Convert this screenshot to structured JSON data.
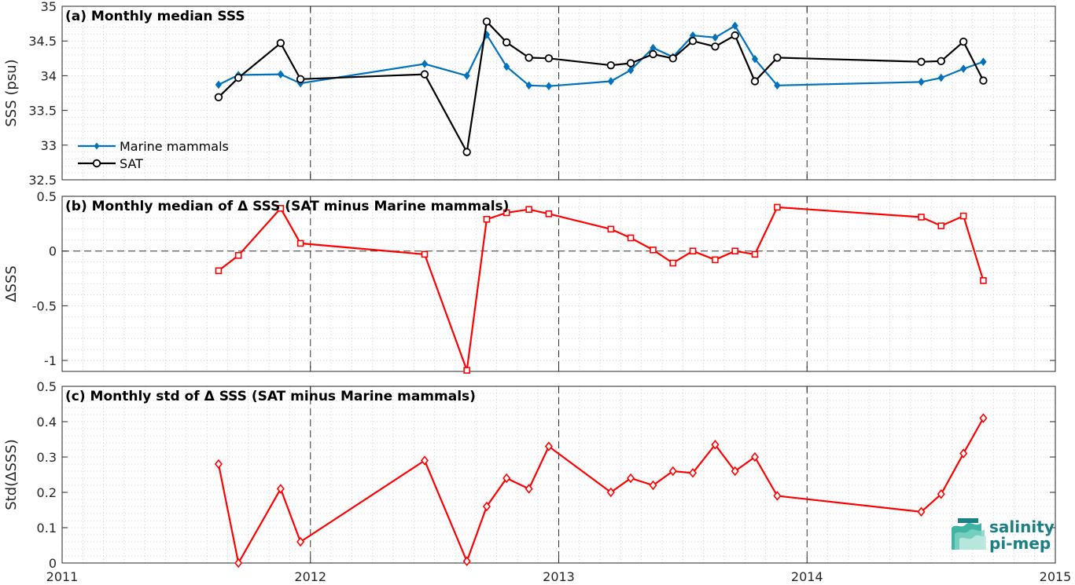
{
  "colors": {
    "marine_mammals": "#0072BD",
    "sat": "#000000",
    "delta": "#FF0000",
    "logo": "#1b7f86"
  },
  "logo": {
    "line1": "salinity",
    "line2": "pi-mep"
  },
  "x_axis": {
    "xlim": [
      2011,
      2015
    ],
    "tick_labels": [
      "2011",
      "2012",
      "2013",
      "2014",
      "2015"
    ]
  },
  "chart_data": [
    {
      "type": "line",
      "title": "(a) Monthly median SSS",
      "xlabel": "",
      "ylabel": "SSS (psu)",
      "ylim": [
        32.5,
        35
      ],
      "yticks": [
        32.5,
        33,
        33.5,
        34,
        34.5,
        35
      ],
      "ytick_labels": [
        "32.5",
        "33",
        "33.5",
        "34",
        "34.5",
        "35"
      ],
      "grid": true,
      "legend_position": "bottom-left",
      "series": [
        {
          "name": "Marine mammals",
          "marker": "diamond-filled",
          "x": [
            2011.63,
            2011.71,
            2011.88,
            2011.96,
            2012.46,
            2012.63,
            2012.71,
            2012.79,
            2012.88,
            2012.96,
            2013.21,
            2013.29,
            2013.38,
            2013.46,
            2013.54,
            2013.63,
            2013.71,
            2013.79,
            2013.88,
            2014.46,
            2014.54,
            2014.63,
            2014.71
          ],
          "values": [
            33.87,
            34.01,
            34.02,
            33.89,
            34.17,
            34.0,
            34.59,
            34.13,
            33.86,
            33.85,
            33.92,
            34.08,
            34.4,
            34.27,
            34.58,
            34.55,
            34.72,
            34.24,
            33.86,
            33.91,
            33.97,
            34.1,
            34.2
          ]
        },
        {
          "name": "SAT",
          "marker": "circle-open",
          "x": [
            2011.63,
            2011.71,
            2011.88,
            2011.96,
            2012.46,
            2012.63,
            2012.71,
            2012.79,
            2012.88,
            2012.96,
            2013.21,
            2013.29,
            2013.38,
            2013.46,
            2013.54,
            2013.63,
            2013.71,
            2013.79,
            2013.88,
            2014.46,
            2014.54,
            2014.63,
            2014.71
          ],
          "values": [
            33.69,
            33.97,
            34.47,
            33.95,
            34.02,
            32.9,
            34.78,
            34.48,
            34.26,
            34.25,
            34.15,
            34.18,
            34.31,
            34.25,
            34.5,
            34.42,
            34.58,
            33.92,
            34.26,
            34.2,
            34.21,
            34.49,
            33.93
          ]
        }
      ]
    },
    {
      "type": "line",
      "title": "(b) Monthly median of Δ SSS (SAT minus Marine mammals)",
      "xlabel": "",
      "ylabel": "ΔSSS",
      "ylim": [
        -1.1,
        0.5
      ],
      "yticks": [
        -1,
        -0.5,
        0,
        0.5
      ],
      "ytick_labels": [
        "-1",
        "-0.5",
        "0",
        "0.5"
      ],
      "grid": true,
      "zero_line": "dashed",
      "series": [
        {
          "marker": "square-open",
          "x": [
            2011.63,
            2011.71,
            2011.88,
            2011.96,
            2012.46,
            2012.63,
            2012.71,
            2012.79,
            2012.88,
            2012.96,
            2013.21,
            2013.29,
            2013.38,
            2013.46,
            2013.54,
            2013.63,
            2013.71,
            2013.79,
            2013.88,
            2014.46,
            2014.54,
            2014.63,
            2014.71
          ],
          "values": [
            -0.18,
            -0.04,
            0.39,
            0.07,
            -0.03,
            -1.09,
            0.29,
            0.35,
            0.38,
            0.34,
            0.2,
            0.12,
            0.01,
            -0.11,
            0.0,
            -0.08,
            0.0,
            -0.03,
            0.4,
            0.31,
            0.23,
            0.32,
            -0.27
          ]
        }
      ]
    },
    {
      "type": "line",
      "title": "(c) Monthly std of Δ SSS (SAT minus Marine mammals)",
      "xlabel": "",
      "ylabel": "Std(ΔSSS)",
      "ylim": [
        0,
        0.5
      ],
      "yticks": [
        0,
        0.1,
        0.2,
        0.3,
        0.4,
        0.5
      ],
      "ytick_labels": [
        "0",
        "0.1",
        "0.2",
        "0.3",
        "0.4",
        "0.5"
      ],
      "grid": true,
      "series": [
        {
          "marker": "diamond-open",
          "x": [
            2011.63,
            2011.71,
            2011.88,
            2011.96,
            2012.46,
            2012.63,
            2012.71,
            2012.79,
            2012.88,
            2012.96,
            2013.21,
            2013.29,
            2013.38,
            2013.46,
            2013.54,
            2013.63,
            2013.71,
            2013.79,
            2013.88,
            2014.46,
            2014.54,
            2014.63,
            2014.71
          ],
          "values": [
            0.28,
            0.0,
            0.21,
            0.06,
            0.29,
            0.005,
            0.16,
            0.24,
            0.21,
            0.33,
            0.2,
            0.24,
            0.22,
            0.26,
            0.255,
            0.335,
            0.26,
            0.3,
            0.19,
            0.145,
            0.195,
            0.31,
            0.41
          ]
        }
      ]
    }
  ]
}
